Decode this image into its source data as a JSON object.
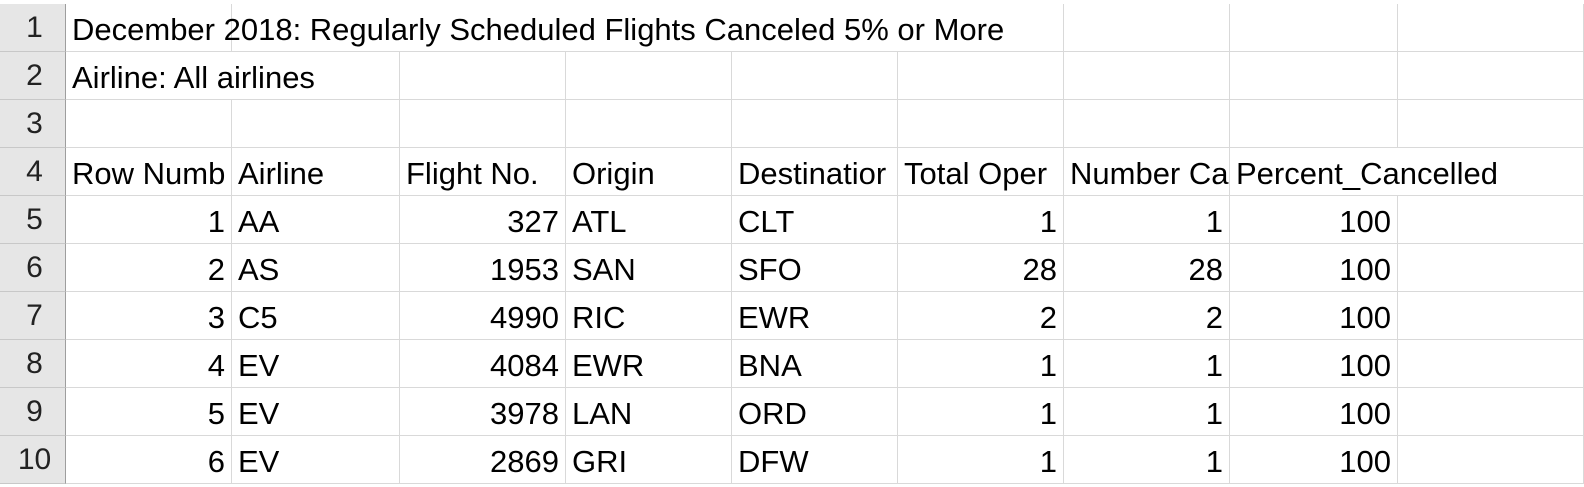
{
  "sheet": {
    "row_numbers": [
      "1",
      "2",
      "3",
      "4",
      "5",
      "6",
      "7",
      "8",
      "9",
      "10"
    ],
    "title": "December 2018:  Regularly Scheduled Flights Canceled 5% or More",
    "subtitle": "Airline: All airlines",
    "headers": [
      "Row Numb",
      "Airline",
      "Flight No.",
      "Origin",
      "Destinatior",
      "Total Oper",
      "Number Ca",
      "Percent_Cancelled"
    ],
    "rows": [
      [
        "1",
        "AA",
        "327",
        "ATL",
        "CLT",
        "1",
        "1",
        "100"
      ],
      [
        "2",
        "AS",
        "1953",
        "SAN",
        "SFO",
        "28",
        "28",
        "100"
      ],
      [
        "3",
        "C5",
        "4990",
        "RIC",
        "EWR",
        "2",
        "2",
        "100"
      ],
      [
        "4",
        "EV",
        "4084",
        "EWR",
        "BNA",
        "1",
        "1",
        "100"
      ],
      [
        "5",
        "EV",
        "3978",
        "LAN",
        "ORD",
        "1",
        "1",
        "100"
      ],
      [
        "6",
        "EV",
        "2869",
        "GRI",
        "DFW",
        "1",
        "1",
        "100"
      ]
    ]
  }
}
